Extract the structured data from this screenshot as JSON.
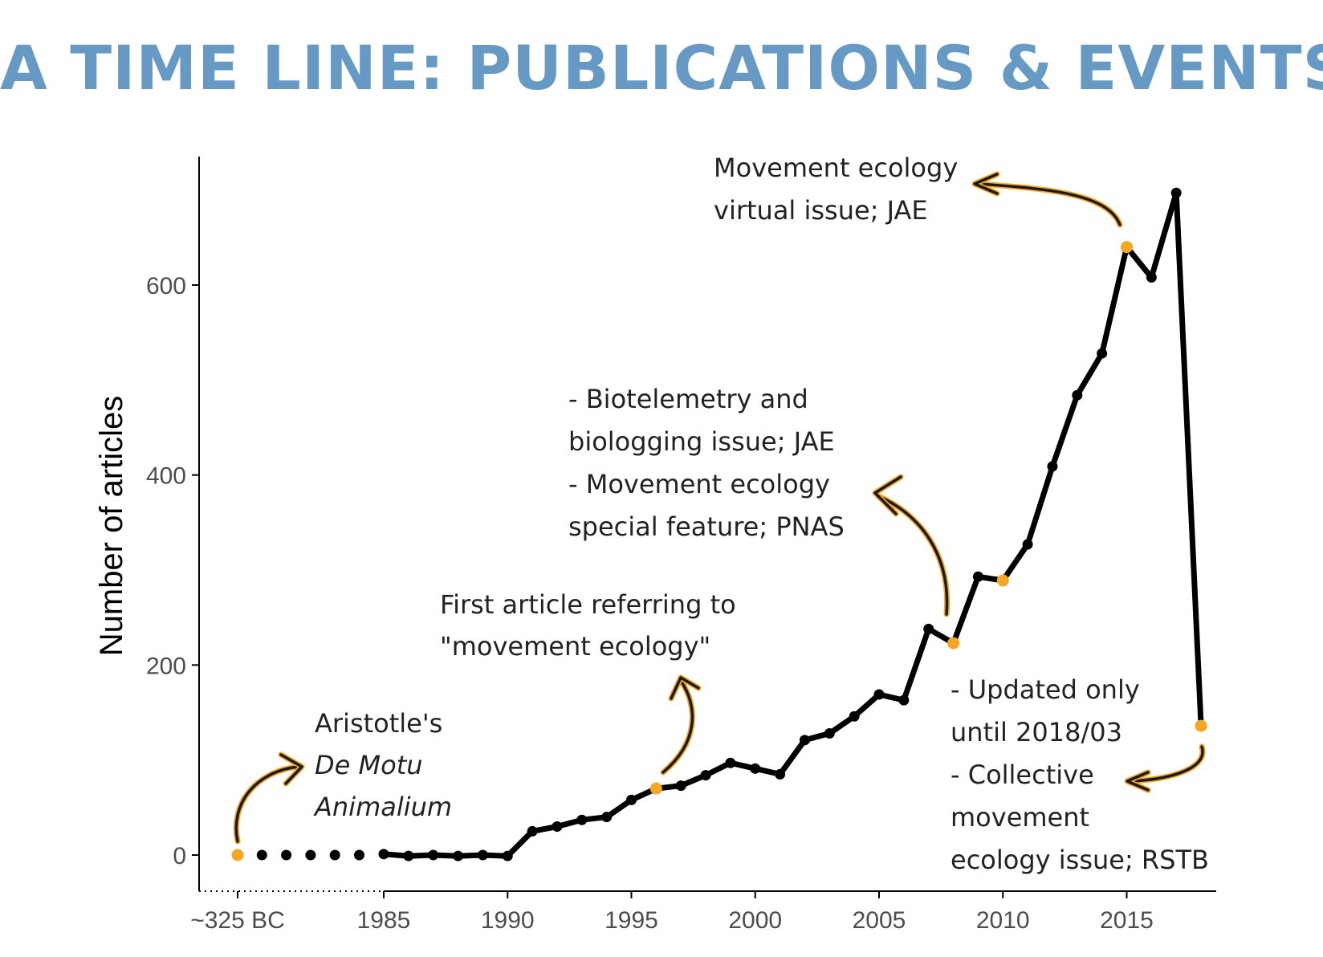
{
  "title": "A TIME LINE: PUBLICATIONS & EVENTS",
  "colors": {
    "title": "#6699c4",
    "line": "#000000",
    "highlight": "#f5a623",
    "axis": "#000000",
    "tick_text": "#4d4d4d"
  },
  "chart_data": {
    "type": "line",
    "title": "A TIME LINE: PUBLICATIONS & EVENTS",
    "xlabel": "",
    "ylabel": "Number of articles",
    "ylim": [
      -35,
      735
    ],
    "yticks": [
      0,
      200,
      400,
      600
    ],
    "ytick_labels": [
      "0",
      "200",
      "400",
      "600"
    ],
    "xticks": [
      "~325 BC",
      "1985",
      "1990",
      "1995",
      "2000",
      "2005",
      "2010",
      "2015"
    ],
    "xlim": [
      1977,
      2019
    ],
    "grid": false,
    "legend": "none",
    "series": [
      {
        "x": [
          1985,
          1986,
          1987,
          1988,
          1989,
          1990,
          1991,
          1992,
          1993,
          1994,
          1995,
          1996,
          1997,
          1998,
          1999,
          2000,
          2001,
          2002,
          2003,
          2004,
          2005,
          2006,
          2007,
          2008,
          2009,
          2010,
          2011,
          2012,
          2013,
          2014,
          2015,
          2016,
          2017,
          2018
        ],
        "values": [
          1,
          -1,
          0,
          -1,
          0,
          -1,
          25,
          30,
          37,
          40,
          58,
          70,
          73,
          84,
          97,
          91,
          85,
          121,
          128,
          146,
          169,
          163,
          238,
          223,
          293,
          289,
          327,
          409,
          484,
          528,
          640,
          608,
          697,
          136
        ]
      }
    ],
    "ancient_point": {
      "label": "~325 BC",
      "value": 0
    },
    "highlighted_points": [
      {
        "x": "~325 BC",
        "value": 0
      },
      {
        "x": 1996,
        "value": 70
      },
      {
        "x": 2008,
        "value": 223
      },
      {
        "x": 2010,
        "value": 289
      },
      {
        "x": 2015,
        "value": 640
      },
      {
        "x": 2018,
        "value": 136
      }
    ],
    "annotations": [
      {
        "name": "aristotle",
        "lines": [
          "Aristotle's",
          "De Motu",
          "Animalium"
        ],
        "italic_lines": [
          1,
          2
        ]
      },
      {
        "name": "first-article",
        "lines": [
          "First article referring to",
          "\"movement ecology\""
        ]
      },
      {
        "name": "biotelemetry",
        "lines": [
          "- Biotelemetry and",
          "biologging issue; JAE",
          "- Movement ecology",
          "special feature; PNAS"
        ]
      },
      {
        "name": "virtual-issue",
        "lines": [
          "Movement ecology",
          "virtual issue; JAE"
        ]
      },
      {
        "name": "updated",
        "lines": [
          "- Updated only",
          "until 2018/03",
          "- Collective",
          "movement",
          "ecology issue; RSTB"
        ]
      }
    ]
  }
}
